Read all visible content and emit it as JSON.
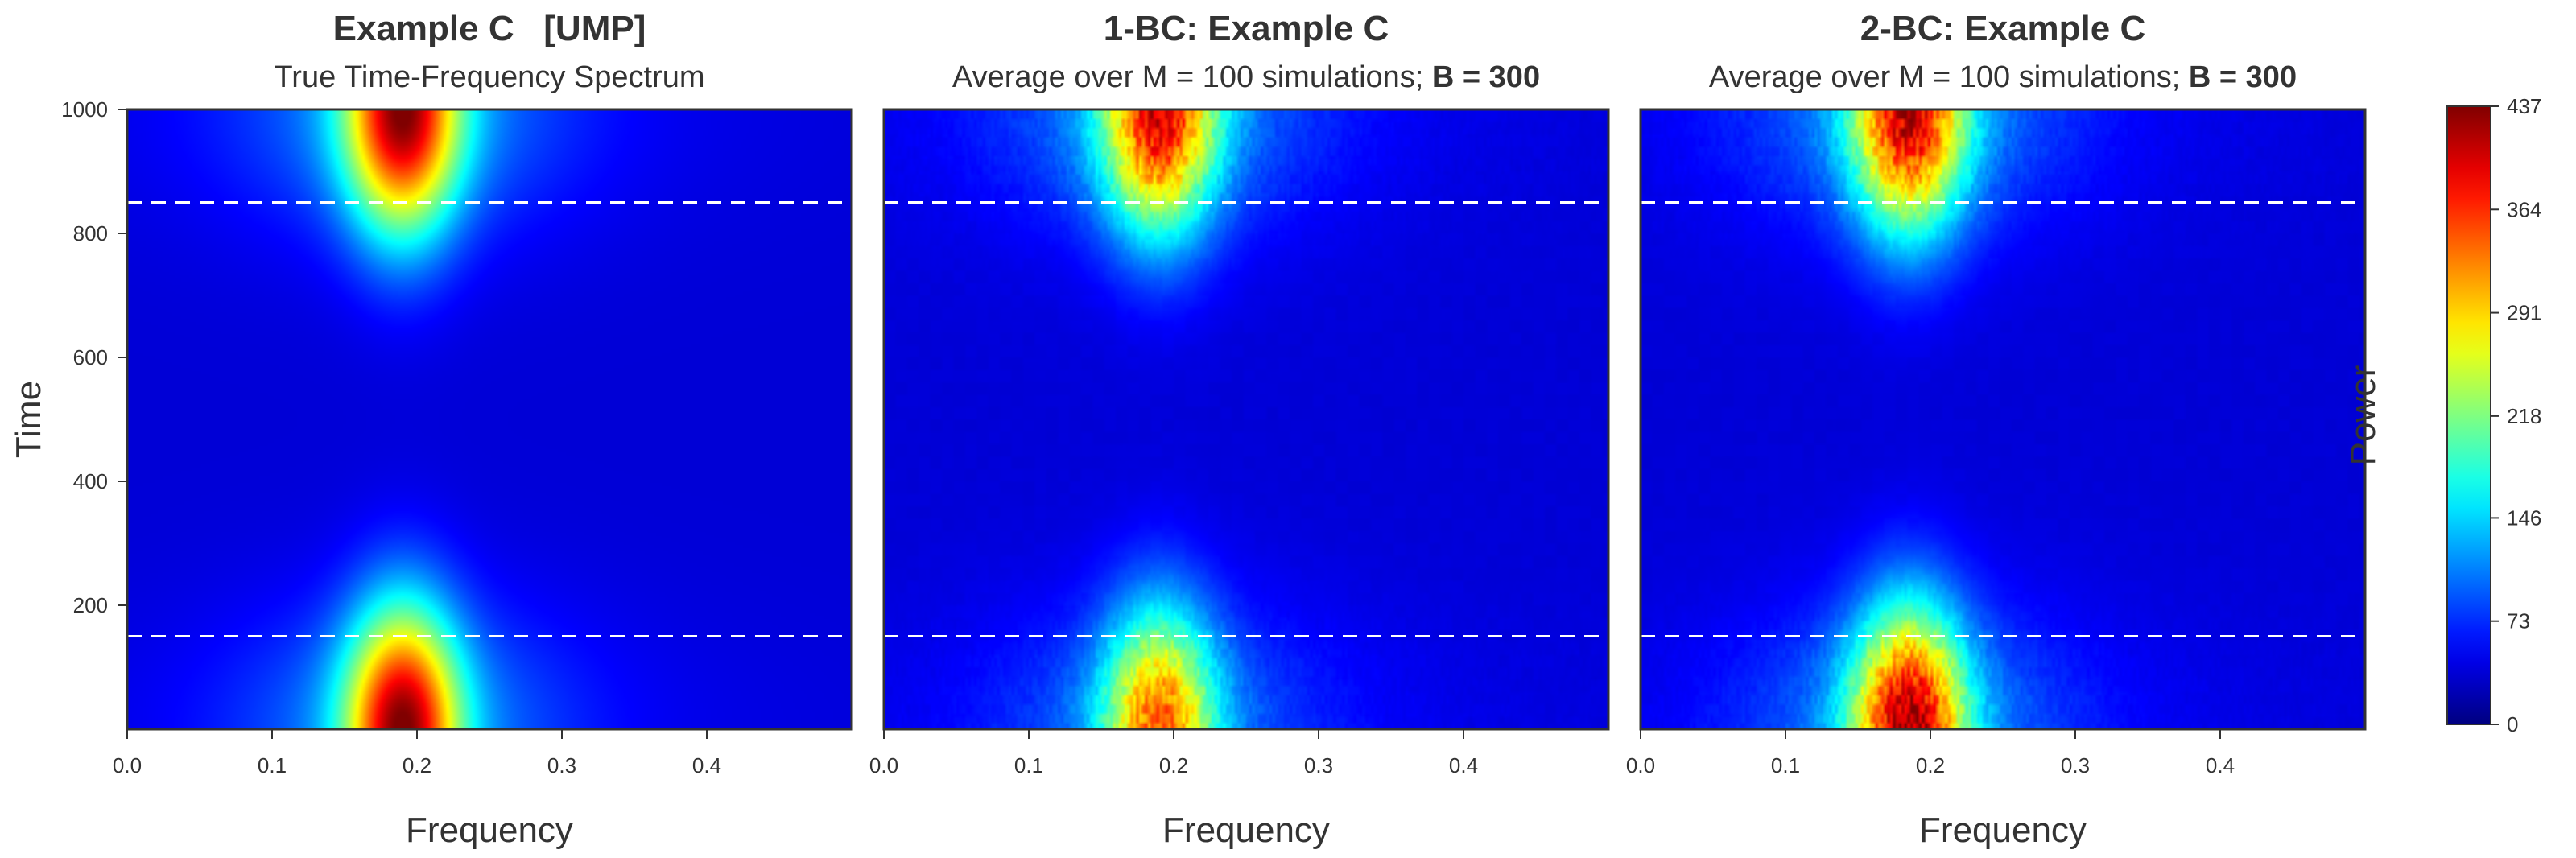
{
  "chart_data": {
    "type": "heatmap",
    "panels": [
      {
        "title": "Example C   [UMP]",
        "subtitle": "True Time-Frequency Spectrum",
        "subtitle_bold": "",
        "xlabel": "Frequency",
        "ylabel": "Time",
        "xlim": [
          0,
          0.5
        ],
        "ylim": [
          0,
          1000
        ],
        "xticks": [
          0.0,
          0.1,
          0.2,
          0.3,
          0.4
        ],
        "xtick_labels": [
          "0.0",
          "0.1",
          "0.2",
          "0.3",
          "0.4"
        ],
        "yticks": [
          200,
          400,
          600,
          800,
          1000
        ],
        "ytick_labels": [
          "200",
          "400",
          "600",
          "800",
          "1000"
        ],
        "reference_lines_time": [
          150,
          850
        ],
        "peak_frequency": 0.19,
        "peak_power_top": 437,
        "peak_power_bottom": 437,
        "noisy": false
      },
      {
        "title": "1-BC: Example C",
        "subtitle": "Average over M = 100 simulations; ",
        "subtitle_bold": "B = 300",
        "xlabel": "Frequency",
        "ylabel": "",
        "xlim": [
          0,
          0.5
        ],
        "ylim": [
          0,
          1000
        ],
        "xticks": [
          0.0,
          0.1,
          0.2,
          0.3,
          0.4
        ],
        "xtick_labels": [
          "0.0",
          "0.1",
          "0.2",
          "0.3",
          "0.4"
        ],
        "yticks": [],
        "ytick_labels": [],
        "reference_lines_time": [
          150,
          850
        ],
        "peak_frequency": 0.19,
        "peak_power_top": 390,
        "peak_power_bottom": 330,
        "noisy": true
      },
      {
        "title": "2-BC: Example C",
        "subtitle": "Average over M = 100 simulations; ",
        "subtitle_bold": "B = 300",
        "xlabel": "Frequency",
        "ylabel": "",
        "xlim": [
          0,
          0.5
        ],
        "ylim": [
          0,
          1000
        ],
        "xticks": [
          0.0,
          0.1,
          0.2,
          0.3,
          0.4
        ],
        "xtick_labels": [
          "0.0",
          "0.1",
          "0.2",
          "0.3",
          "0.4"
        ],
        "yticks": [],
        "ytick_labels": [],
        "reference_lines_time": [
          150,
          850
        ],
        "peak_frequency": 0.185,
        "peak_power_top": 400,
        "peak_power_bottom": 420,
        "noisy": true
      }
    ],
    "colorbar": {
      "label": "Power",
      "range": [
        0,
        437
      ],
      "ticks": [
        0,
        73,
        146,
        218,
        291,
        364,
        437
      ],
      "tick_labels": [
        "0",
        "73",
        "146",
        "218",
        "291",
        "364",
        "437"
      ],
      "colormap": "jet"
    },
    "colors": {
      "reference_line": "#ffffff",
      "frame": "#333333"
    }
  }
}
